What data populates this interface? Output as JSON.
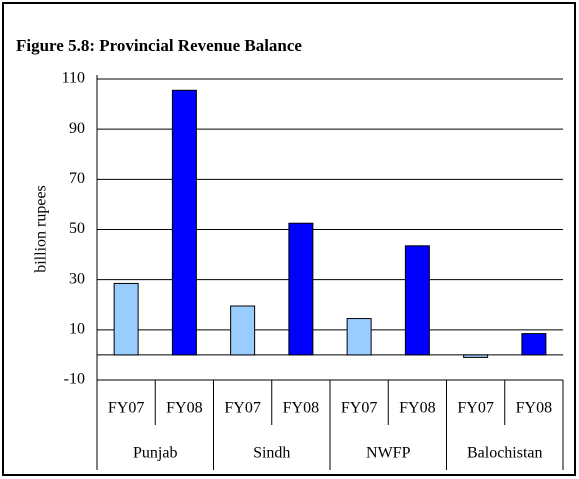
{
  "chart_data": {
    "type": "bar",
    "title": "Figure 5.8: Provincial Revenue Balance",
    "y_label": "billion rupees",
    "categories": [
      "FY07",
      "FY08",
      "FY07",
      "FY08",
      "FY07",
      "FY08",
      "FY07",
      "FY08"
    ],
    "groups": [
      "Punjab",
      "Sindh",
      "NWFP",
      "Balochistan"
    ],
    "values": [
      28.5,
      105.5,
      19.5,
      52.5,
      14.5,
      43.5,
      -1,
      8.5
    ],
    "colors": [
      "#99ccff",
      "#0000ff",
      "#99ccff",
      "#0000ff",
      "#99ccff",
      "#0000ff",
      "#99ccff",
      "#0000ff"
    ],
    "ylim": [
      -10,
      110
    ],
    "yticks": [
      -10,
      10,
      30,
      50,
      70,
      90,
      110
    ],
    "grid": true
  }
}
